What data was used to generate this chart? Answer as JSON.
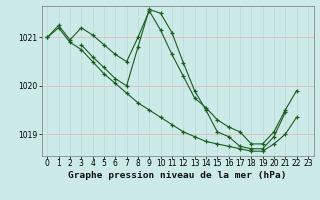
{
  "title": "Graphe pression niveau de la mer (hPa)",
  "background_color": "#cceae8",
  "grid_color_h": "#e8b8b8",
  "grid_color_v": "#b8d8d8",
  "line_color": "#1a5c20",
  "xlim": [
    -0.5,
    23.5
  ],
  "ylim": [
    1018.55,
    1021.65
  ],
  "yticks": [
    1019,
    1020,
    1021
  ],
  "xticks": [
    0,
    1,
    2,
    3,
    4,
    5,
    6,
    7,
    8,
    9,
    10,
    11,
    12,
    13,
    14,
    15,
    16,
    17,
    18,
    19,
    20,
    21,
    22,
    23
  ],
  "series": [
    [
      1021.0,
      1021.25,
      1020.95,
      1021.2,
      1021.05,
      1020.85,
      1020.65,
      1020.5,
      1021.0,
      1021.55,
      1021.15,
      1020.65,
      1020.2,
      1019.75,
      1019.55,
      1019.3,
      1019.15,
      1019.05,
      1018.8,
      1018.8,
      1019.05,
      1019.5,
      1019.9,
      null
    ],
    [
      1021.0,
      1021.2,
      1020.9,
      1020.75,
      1020.5,
      1020.25,
      1020.05,
      1019.85,
      1019.65,
      1019.5,
      1019.35,
      1019.2,
      1019.05,
      1018.95,
      1018.85,
      1018.8,
      1018.75,
      1018.7,
      1018.65,
      1018.65,
      1018.8,
      1019.0,
      1019.35,
      null
    ],
    [
      null,
      null,
      null,
      1020.85,
      1020.6,
      1020.38,
      1020.15,
      1020.0,
      1020.8,
      1021.58,
      1021.5,
      1021.1,
      1020.48,
      1019.9,
      1019.5,
      1019.05,
      1018.95,
      1018.75,
      1018.7,
      1018.7,
      1018.95,
      1019.45,
      null,
      null
    ]
  ],
  "tick_fontsize": 5.5,
  "title_fontsize": 6.8
}
